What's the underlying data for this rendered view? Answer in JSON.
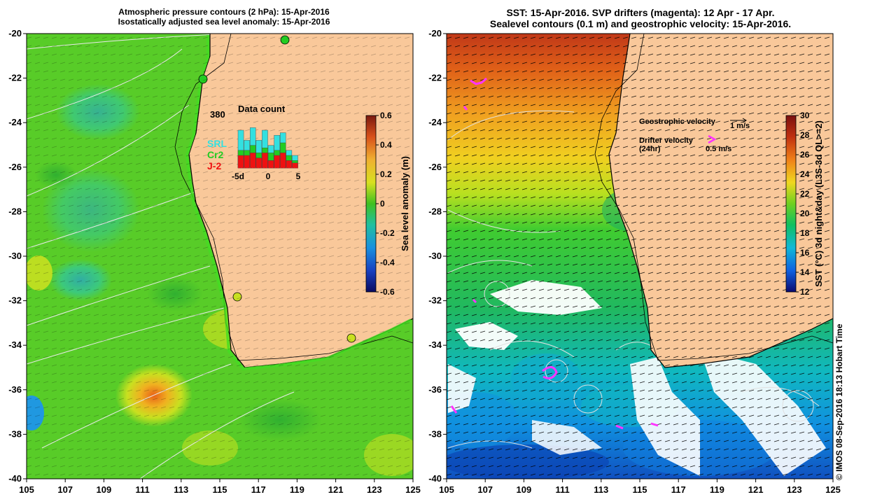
{
  "left_panel": {
    "title_line1": "Atmospheric pressure contours (2 hPa): 15-Apr-2016",
    "title_line2": "Isostatically adjusted sea level anomaly: 15-Apr-2016",
    "lat_ticks": [
      "-20",
      "-22",
      "-24",
      "-26",
      "-28",
      "-30",
      "-32",
      "-34",
      "-36",
      "-38",
      "-40"
    ],
    "lon_ticks": [
      "105",
      "107",
      "109",
      "111",
      "113",
      "115",
      "117",
      "119",
      "121",
      "123",
      "125"
    ],
    "colorbar": {
      "label": "Sea level anomaly (m)",
      "ticks": [
        "0.6",
        "0.4",
        "0.2",
        "0",
        "-0.2",
        "-0.4",
        "-0.6"
      ],
      "range": [
        -0.6,
        0.6
      ]
    },
    "data_count": {
      "title": "Data count",
      "max_label": "380",
      "missions": [
        {
          "name": "SRL",
          "color": "#33e0e0"
        },
        {
          "name": "Cr2",
          "color": "#22cc22"
        },
        {
          "name": "J-2",
          "color": "#ee1111"
        }
      ],
      "x_labels": [
        "-5d",
        "0",
        "5"
      ],
      "bars": [
        {
          "j2": 0.25,
          "cr2": 0.35,
          "srl": 0.75
        },
        {
          "j2": 0.25,
          "cr2": 0.35,
          "srl": 0.55
        },
        {
          "j2": 0.3,
          "cr2": 0.45,
          "srl": 0.8
        },
        {
          "j2": 0.2,
          "cr2": 0.3,
          "srl": 0.55
        },
        {
          "j2": 0.3,
          "cr2": 0.4,
          "srl": 0.75
        },
        {
          "j2": 0.15,
          "cr2": 0.3,
          "srl": 0.45
        },
        {
          "j2": 0.25,
          "cr2": 0.35,
          "srl": 0.65
        },
        {
          "j2": 0.3,
          "cr2": 0.5,
          "srl": 0.7
        },
        {
          "j2": 0.15,
          "cr2": 0.25,
          "srl": 0.35
        },
        {
          "j2": 0.1,
          "cr2": 0.15,
          "srl": 0.25
        }
      ]
    }
  },
  "right_panel": {
    "title_line1": "SST: 15-Apr-2016. SVP drifters (magenta): 12 Apr - 17 Apr.",
    "title_line2": "Sealevel contours (0.1 m) and geostrophic velocity: 15-Apr-2016.",
    "lat_ticks": [
      "-20",
      "-22",
      "-24",
      "-26",
      "-28",
      "-30",
      "-32",
      "-34",
      "-36",
      "-38",
      "-40"
    ],
    "lon_ticks": [
      "105",
      "107",
      "109",
      "111",
      "113",
      "115",
      "117",
      "119",
      "121",
      "123",
      "125"
    ],
    "colorbar": {
      "label": "SST (°C) 3d night&day (L3S-3d QL>=2)",
      "ticks": [
        "30",
        "28",
        "26",
        "24",
        "22",
        "20",
        "18",
        "16",
        "14",
        "12"
      ],
      "range": [
        12,
        30
      ]
    },
    "legend": {
      "geostrophic_label": "Geostrophic velocity",
      "geostrophic_scale": "1 m/s",
      "drifter_label": "Drifter velocity",
      "drifter_sub": "(24hr)",
      "drifter_scale": "0.5 m/s"
    }
  },
  "credit": "© IMOS 08-Sep-2016 18:13 Hobart Time",
  "colors": {
    "land": "#f9c89a",
    "cloud": "#ffffff",
    "drifter": "#ff33ff"
  }
}
